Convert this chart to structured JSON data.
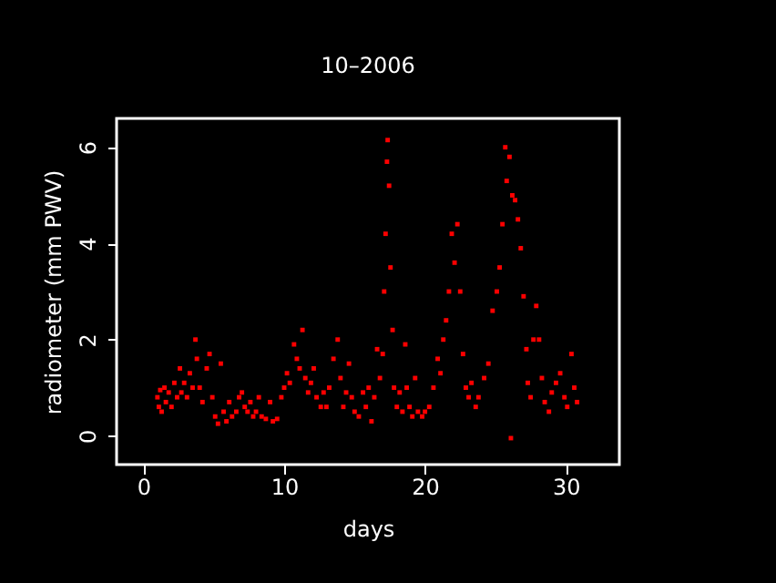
{
  "chart_data": {
    "type": "scatter",
    "title": "10–2006",
    "xlabel": "days",
    "ylabel": "radiometer (mm PWV)",
    "x": [
      1.0,
      1.1,
      1.2,
      1.3,
      1.5,
      1.6,
      1.8,
      2.0,
      2.2,
      2.4,
      2.6,
      2.7,
      2.9,
      3.1,
      3.3,
      3.5,
      3.7,
      3.8,
      4.0,
      4.2,
      4.5,
      4.7,
      4.9,
      5.1,
      5.3,
      5.5,
      5.7,
      5.9,
      6.1,
      6.3,
      6.6,
      6.8,
      7.0,
      7.2,
      7.4,
      7.6,
      7.8,
      8.0,
      8.2,
      8.4,
      8.7,
      9.0,
      9.2,
      9.5,
      9.8,
      10.0,
      10.2,
      10.4,
      10.7,
      10.9,
      11.1,
      11.3,
      11.5,
      11.7,
      11.9,
      12.1,
      12.3,
      12.6,
      12.8,
      13.0,
      13.2,
      13.5,
      13.8,
      14.0,
      14.2,
      14.4,
      14.6,
      14.8,
      15.0,
      15.3,
      15.6,
      15.8,
      16.0,
      16.2,
      16.4,
      16.6,
      16.8,
      17.0,
      17.1,
      17.2,
      17.3,
      17.35,
      17.45,
      17.55,
      17.7,
      17.8,
      18.0,
      18.2,
      18.4,
      18.6,
      18.7,
      18.9,
      19.1,
      19.3,
      19.5,
      19.8,
      20.0,
      20.3,
      20.6,
      20.9,
      21.1,
      21.3,
      21.5,
      21.7,
      21.9,
      22.1,
      22.3,
      22.5,
      22.7,
      22.9,
      23.1,
      23.3,
      23.6,
      23.8,
      24.2,
      24.5,
      24.8,
      25.1,
      25.3,
      25.5,
      25.7,
      25.8,
      26.0,
      26.1,
      26.2,
      26.4,
      26.6,
      26.8,
      27.0,
      27.2,
      27.3,
      27.5,
      27.7,
      27.9,
      28.1,
      28.3,
      28.5,
      28.8,
      29.0,
      29.3,
      29.6,
      29.9,
      30.1,
      30.4,
      30.6,
      30.8
    ],
    "series": [
      {
        "color": "#ff0000",
        "values": [
          0.8,
          0.6,
          0.95,
          0.5,
          1.0,
          0.7,
          0.9,
          0.6,
          1.1,
          0.8,
          1.4,
          0.9,
          1.1,
          0.8,
          1.3,
          1.0,
          2.0,
          1.6,
          1.0,
          0.7,
          1.4,
          1.7,
          0.8,
          0.4,
          0.25,
          1.5,
          0.5,
          0.3,
          0.7,
          0.4,
          0.5,
          0.8,
          0.9,
          0.6,
          0.5,
          0.7,
          0.4,
          0.5,
          0.8,
          0.4,
          0.35,
          0.7,
          0.3,
          0.35,
          0.8,
          1.0,
          1.3,
          1.1,
          1.9,
          1.6,
          1.4,
          2.2,
          1.2,
          0.9,
          1.1,
          1.4,
          0.8,
          0.6,
          0.9,
          0.6,
          1.0,
          1.6,
          2.0,
          1.2,
          0.6,
          0.9,
          1.5,
          0.8,
          0.5,
          0.4,
          0.9,
          0.6,
          1.0,
          0.3,
          0.8,
          1.8,
          1.2,
          1.7,
          3.0,
          4.2,
          5.7,
          6.15,
          5.2,
          3.5,
          2.2,
          1.0,
          0.6,
          0.9,
          0.5,
          1.9,
          1.0,
          0.6,
          0.4,
          1.2,
          0.5,
          0.4,
          0.5,
          0.6,
          1.0,
          1.6,
          1.3,
          2.0,
          2.4,
          3.0,
          4.2,
          3.6,
          4.4,
          3.0,
          1.7,
          1.0,
          0.8,
          1.1,
          0.6,
          0.8,
          1.2,
          1.5,
          2.6,
          3.0,
          3.5,
          4.4,
          6.0,
          5.3,
          5.8,
          -0.05,
          5.0,
          4.9,
          4.5,
          3.9,
          2.9,
          1.8,
          1.1,
          0.8,
          2.0,
          2.7,
          2.0,
          1.2,
          0.7,
          0.5,
          0.9,
          1.1,
          1.3,
          0.8,
          0.6,
          1.7,
          1.0,
          0.7
        ]
      }
    ],
    "xlim": [
      -1.9,
      33.8
    ],
    "ylim": [
      -0.6,
      6.6
    ],
    "xticks": [
      0,
      10,
      20,
      30
    ],
    "yticks": [
      0,
      2,
      4,
      6
    ],
    "marker": "square",
    "grid": false,
    "legend": false
  }
}
